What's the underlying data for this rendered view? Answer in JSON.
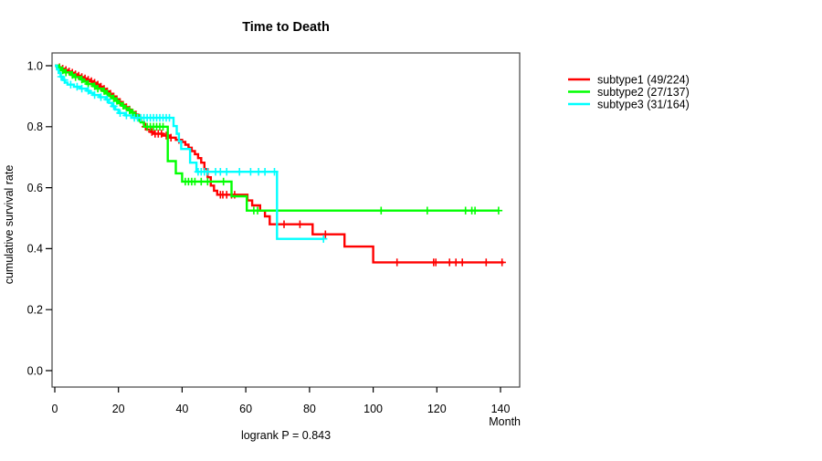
{
  "title": "Time to Death",
  "axes": {
    "x_label": "Month",
    "y_label": "cumulative survival rate",
    "x_tick_labels": [
      "0",
      "20",
      "40",
      "60",
      "80",
      "100",
      "120",
      "140"
    ],
    "y_tick_labels": [
      "1.0",
      "0.8",
      "0.6",
      "0.4",
      "0.2",
      "0.0"
    ]
  },
  "footer": {
    "logrank_label": "logrank P = 0.843"
  },
  "legend": [
    {
      "label": "subtype1  (49/224)",
      "color": "#ff0000"
    },
    {
      "label": "subtype2  (27/137)",
      "color": "#00ff00"
    },
    {
      "label": "subtype3  (31/164)",
      "color": "#00ffff"
    }
  ],
  "chart_data": {
    "type": "line",
    "variant": "kaplan-meier-step",
    "title": "Time to Death",
    "xlabel": "Month",
    "ylabel": "cumulative survival rate",
    "xlim": [
      0,
      147
    ],
    "ylim": [
      0.0,
      1.0
    ],
    "x_ticks": [
      0,
      20,
      40,
      60,
      80,
      100,
      120,
      140
    ],
    "y_ticks": [
      0.0,
      0.2,
      0.4,
      0.6,
      0.8,
      1.0
    ],
    "grid": false,
    "legend_position": "right-outside",
    "logrank_p": 0.843,
    "series": [
      {
        "name": "subtype1",
        "events_over_n": "49/224",
        "color": "#ff0000",
        "steps": [
          [
            0,
            1.0
          ],
          [
            1,
            0.995
          ],
          [
            2,
            0.99
          ],
          [
            3,
            0.986
          ],
          [
            4,
            0.981
          ],
          [
            5,
            0.977
          ],
          [
            6,
            0.972
          ],
          [
            7,
            0.967
          ],
          [
            8,
            0.963
          ],
          [
            9,
            0.958
          ],
          [
            10,
            0.954
          ],
          [
            11,
            0.949
          ],
          [
            12,
            0.944
          ],
          [
            13,
            0.938
          ],
          [
            14,
            0.931
          ],
          [
            15,
            0.924
          ],
          [
            16,
            0.916
          ],
          [
            17,
            0.908
          ],
          [
            18,
            0.899
          ],
          [
            19,
            0.89
          ],
          [
            20,
            0.881
          ],
          [
            21,
            0.872
          ],
          [
            22,
            0.864
          ],
          [
            23,
            0.856
          ],
          [
            24,
            0.848
          ],
          [
            25,
            0.84
          ],
          [
            26,
            0.83
          ],
          [
            27,
            0.815
          ],
          [
            28,
            0.8
          ],
          [
            29,
            0.79
          ],
          [
            30,
            0.783
          ],
          [
            31,
            0.777
          ],
          [
            34,
            0.771
          ],
          [
            36,
            0.764
          ],
          [
            38,
            0.757
          ],
          [
            40,
            0.75
          ],
          [
            41,
            0.741
          ],
          [
            42,
            0.731
          ],
          [
            43,
            0.72
          ],
          [
            44,
            0.71
          ],
          [
            45,
            0.697
          ],
          [
            46,
            0.682
          ],
          [
            47,
            0.661
          ],
          [
            48,
            0.634
          ],
          [
            49,
            0.607
          ],
          [
            50,
            0.59
          ],
          [
            51,
            0.577
          ],
          [
            60.5,
            0.558
          ],
          [
            62,
            0.542
          ],
          [
            64.5,
            0.525
          ],
          [
            66,
            0.506
          ],
          [
            67.5,
            0.48
          ],
          [
            81,
            0.447
          ],
          [
            91,
            0.407
          ],
          [
            100,
            0.355
          ]
        ],
        "end_time": 141,
        "censor_times": [
          1.5,
          2.5,
          3.5,
          4.5,
          5.5,
          6.5,
          7.5,
          8.5,
          9.5,
          10.5,
          11.5,
          12.5,
          13.5,
          14.5,
          15.5,
          16.5,
          17.5,
          18.5,
          19.5,
          20.5,
          21.5,
          22.5,
          23.5,
          25.5,
          26.5,
          28.5,
          30.5,
          31.5,
          32.5,
          33.5,
          35,
          36.5,
          39,
          52,
          52.8,
          54,
          55.5,
          56.5,
          72,
          77,
          85,
          107.5,
          119,
          119.7,
          124,
          126,
          128,
          135.5,
          140.5
        ]
      },
      {
        "name": "subtype2",
        "events_over_n": "27/137",
        "color": "#00ff00",
        "steps": [
          [
            0,
            1.0
          ],
          [
            1,
            0.993
          ],
          [
            2,
            0.985
          ],
          [
            3,
            0.978
          ],
          [
            5,
            0.97
          ],
          [
            6,
            0.963
          ],
          [
            8,
            0.955
          ],
          [
            9,
            0.948
          ],
          [
            10,
            0.94
          ],
          [
            12,
            0.933
          ],
          [
            13,
            0.925
          ],
          [
            15,
            0.917
          ],
          [
            16,
            0.909
          ],
          [
            17,
            0.901
          ],
          [
            18,
            0.893
          ],
          [
            19,
            0.885
          ],
          [
            20,
            0.877
          ],
          [
            21,
            0.869
          ],
          [
            22,
            0.861
          ],
          [
            23,
            0.854
          ],
          [
            24,
            0.846
          ],
          [
            25,
            0.838
          ],
          [
            26,
            0.828
          ],
          [
            27,
            0.814
          ],
          [
            28,
            0.8
          ],
          [
            35.5,
            0.687
          ],
          [
            38,
            0.647
          ],
          [
            40,
            0.62
          ],
          [
            55.5,
            0.572
          ],
          [
            60.3,
            0.525
          ]
        ],
        "end_time": 139.5,
        "censor_times": [
          1.5,
          2.5,
          3.5,
          5.5,
          6.5,
          8.5,
          10.5,
          12.5,
          13.5,
          15.5,
          16.5,
          18.5,
          19.5,
          21.5,
          23.5,
          24.5,
          26.5,
          29,
          30,
          31,
          32,
          33,
          34,
          41,
          42,
          43,
          44,
          46,
          48,
          53,
          62.5,
          63.7,
          102.5,
          117,
          129,
          131,
          132,
          139.4
        ]
      },
      {
        "name": "subtype3",
        "events_over_n": "31/164",
        "color": "#00ffff",
        "steps": [
          [
            0,
            1.0
          ],
          [
            0.7,
            0.988
          ],
          [
            1.2,
            0.976
          ],
          [
            1.8,
            0.964
          ],
          [
            2.5,
            0.953
          ],
          [
            3.2,
            0.945
          ],
          [
            4,
            0.938
          ],
          [
            6,
            0.931
          ],
          [
            8,
            0.925
          ],
          [
            10,
            0.918
          ],
          [
            11,
            0.911
          ],
          [
            12,
            0.904
          ],
          [
            14,
            0.897
          ],
          [
            16,
            0.889
          ],
          [
            17,
            0.878
          ],
          [
            18,
            0.867
          ],
          [
            19,
            0.856
          ],
          [
            20,
            0.845
          ],
          [
            22,
            0.837
          ],
          [
            24,
            0.829
          ],
          [
            37.3,
            0.802
          ],
          [
            38.3,
            0.777
          ],
          [
            39,
            0.752
          ],
          [
            39.7,
            0.727
          ],
          [
            42.5,
            0.682
          ],
          [
            44.5,
            0.652
          ],
          [
            69.8,
            0.432
          ]
        ],
        "end_time": 84.5,
        "censor_times": [
          2,
          3,
          5,
          7,
          8.5,
          10.5,
          12.5,
          14.5,
          16.5,
          18.5,
          20.5,
          22.5,
          25,
          26,
          27,
          28,
          29,
          30,
          31,
          32,
          33,
          34,
          35,
          36,
          45,
          46,
          47,
          48,
          50.5,
          52,
          54,
          58,
          61.5,
          64,
          66,
          69,
          84.4
        ]
      }
    ]
  }
}
